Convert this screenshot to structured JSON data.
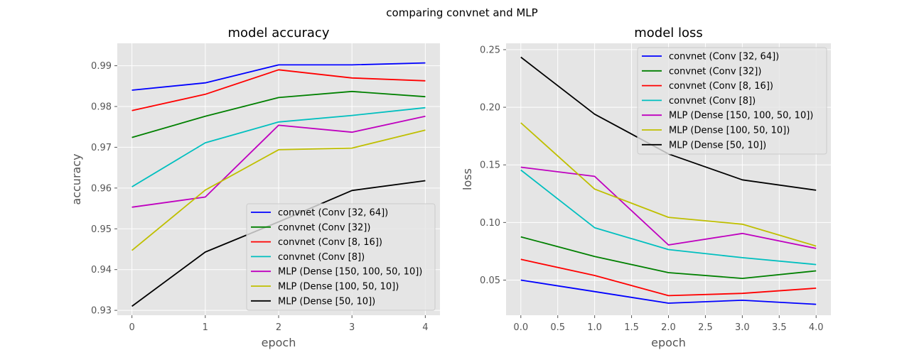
{
  "figure": {
    "suptitle": "comparing convnet and MLP",
    "background": "#ffffff",
    "axes_background": "#e5e5e5",
    "grid_color": "#ffffff"
  },
  "chart_data": [
    {
      "type": "line",
      "title": "model accuracy",
      "xlabel": "epoch",
      "ylabel": "accuracy",
      "x": [
        0,
        1,
        2,
        3,
        4
      ],
      "xlim": [
        -0.2,
        4.2
      ],
      "ylim": [
        0.9288,
        0.9955
      ],
      "x_ticks": [
        0,
        1,
        2,
        3,
        4
      ],
      "x_tick_labels": [
        "0",
        "1",
        "2",
        "3",
        "4"
      ],
      "y_ticks": [
        0.93,
        0.94,
        0.95,
        0.96,
        0.97,
        0.98,
        0.99
      ],
      "y_tick_labels": [
        "0.93",
        "0.94",
        "0.95",
        "0.96",
        "0.97",
        "0.98",
        "0.99"
      ],
      "grid": true,
      "legend_position": "lower-right",
      "series": [
        {
          "name": "convnet (Conv [32, 64])",
          "color": "#0000ff",
          "values": [
            0.984,
            0.9858,
            0.9902,
            0.9902,
            0.9907
          ]
        },
        {
          "name": "convnet (Conv [32])",
          "color": "#008000",
          "values": [
            0.9724,
            0.9776,
            0.9822,
            0.9837,
            0.9824
          ]
        },
        {
          "name": "convnet (Conv [8, 16])",
          "color": "#ff0000",
          "values": [
            0.979,
            0.983,
            0.989,
            0.987,
            0.9863
          ]
        },
        {
          "name": "convnet (Conv [8])",
          "color": "#00bfbf",
          "values": [
            0.9603,
            0.9711,
            0.9762,
            0.9778,
            0.9797
          ]
        },
        {
          "name": "MLP (Dense [150, 100, 50, 10])",
          "color": "#bf00bf",
          "values": [
            0.9553,
            0.9578,
            0.9754,
            0.9737,
            0.9776
          ]
        },
        {
          "name": "MLP (Dense [100, 50, 10])",
          "color": "#bfbf00",
          "values": [
            0.9447,
            0.9595,
            0.9694,
            0.9698,
            0.9742
          ]
        },
        {
          "name": "MLP (Dense [50, 10])",
          "color": "#000000",
          "values": [
            0.931,
            0.9443,
            0.9517,
            0.9594,
            0.9618
          ]
        }
      ]
    },
    {
      "type": "line",
      "title": "model loss",
      "xlabel": "epoch",
      "ylabel": "loss",
      "x": [
        0,
        1,
        2,
        3,
        4
      ],
      "xlim": [
        -0.2,
        4.2
      ],
      "ylim": [
        0.0195,
        0.2555
      ],
      "x_ticks": [
        0.0,
        0.5,
        1.0,
        1.5,
        2.0,
        2.5,
        3.0,
        3.5,
        4.0
      ],
      "x_tick_labels": [
        "0.0",
        "0.5",
        "1.0",
        "1.5",
        "2.0",
        "2.5",
        "3.0",
        "3.5",
        "4.0"
      ],
      "y_ticks": [
        0.05,
        0.1,
        0.15,
        0.2,
        0.25
      ],
      "y_tick_labels": [
        "0.05",
        "0.10",
        "0.15",
        "0.20",
        "0.25"
      ],
      "grid": true,
      "legend_position": "upper-right",
      "series": [
        {
          "name": "convnet (Conv [32, 64])",
          "color": "#0000ff",
          "values": [
            0.05,
            0.04,
            0.03,
            0.0325,
            0.029
          ]
        },
        {
          "name": "convnet (Conv [32])",
          "color": "#008000",
          "values": [
            0.0875,
            0.0705,
            0.0565,
            0.0515,
            0.058
          ]
        },
        {
          "name": "convnet (Conv [8, 16])",
          "color": "#ff0000",
          "values": [
            0.068,
            0.054,
            0.0365,
            0.0385,
            0.043
          ]
        },
        {
          "name": "convnet (Conv [8])",
          "color": "#00bfbf",
          "values": [
            0.1455,
            0.0955,
            0.0765,
            0.0695,
            0.0635
          ]
        },
        {
          "name": "MLP (Dense [150, 100, 50, 10])",
          "color": "#bf00bf",
          "values": [
            0.148,
            0.14,
            0.0805,
            0.0905,
            0.0775
          ]
        },
        {
          "name": "MLP (Dense [100, 50, 10])",
          "color": "#bfbf00",
          "values": [
            0.1865,
            0.129,
            0.1045,
            0.0985,
            0.0795
          ]
        },
        {
          "name": "MLP (Dense [50, 10])",
          "color": "#000000",
          "values": [
            0.2435,
            0.194,
            0.1595,
            0.137,
            0.128
          ]
        }
      ]
    }
  ]
}
